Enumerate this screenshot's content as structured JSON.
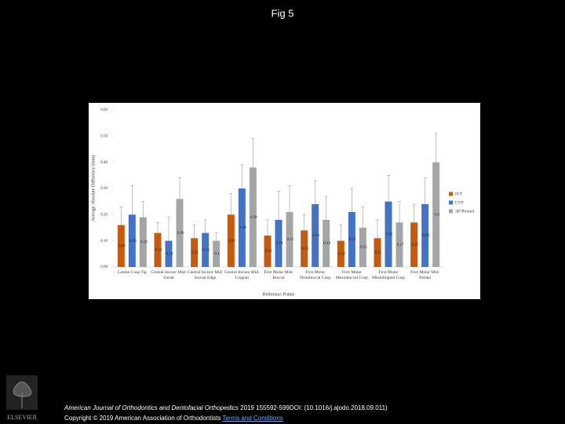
{
  "page": {
    "title": "Fig 5",
    "journal": "American Journal of Orthodontics and Dentofacial Orthopedics",
    "citation": "2019 155592-599DOI: (10.1016/j.ajodo.2018.09.011)",
    "copyright": "Copyright © 2019 American Association of Orthodontists",
    "link": "Terms and Conditions",
    "logo_text": "ELSEVIER"
  },
  "chart_data": {
    "type": "bar",
    "x_label": "Reference Points",
    "y_label": "Average Absolute Difference (mm)",
    "categories": [
      "Canine Cusp Tip",
      "Central Incisor Mid-Facial",
      "Central Incisor Mid-Incisal Edge",
      "Central Incisor Mid-Lingual",
      "First Molar Mid-Buccal",
      "First Molar Distobuccal Cusp",
      "First Molar Mesiobuccal Cusp",
      "First Molar Mesiolingual Cusp",
      "First Molar Mid-Palatal"
    ],
    "series": [
      {
        "name": "IVT",
        "color": "#c55a11",
        "values": [
          0.16,
          0.13,
          0.11,
          0.2,
          0.12,
          0.14,
          0.1,
          0.11,
          0.17
        ],
        "value_labels": [
          "0.16",
          "0.13",
          "0.11",
          "0.20",
          "0.12",
          "0.14",
          "0.10",
          "0.11",
          "0.17"
        ],
        "errors": [
          0.07,
          0.04,
          0.05,
          0.08,
          0.06,
          0.06,
          0.06,
          0.07,
          0.07
        ]
      },
      {
        "name": "CVP",
        "color": "#4472c4",
        "values": [
          0.2,
          0.1,
          0.13,
          0.3,
          0.18,
          0.24,
          0.21,
          0.25,
          0.24
        ],
        "value_labels": [
          "0.20",
          "0.10",
          "0.13",
          "0.30",
          "0.18",
          "0.24",
          "0.21",
          "0.25",
          "0.24"
        ],
        "errors": [
          0.11,
          0.09,
          0.05,
          0.09,
          0.11,
          0.09,
          0.09,
          0.1,
          0.1
        ]
      },
      {
        "name": "3D Printed",
        "color": "#a5a5a5",
        "values": [
          0.19,
          0.26,
          0.1,
          0.38,
          0.21,
          0.18,
          0.15,
          0.17,
          0.4
        ],
        "value_labels": [
          "0.19",
          "0.26",
          "0.1",
          "0.38",
          "0.21",
          "0.18",
          "0.15",
          "0.17",
          "0.4"
        ],
        "errors": [
          0.06,
          0.08,
          0.03,
          0.11,
          0.1,
          0.09,
          0.08,
          0.08,
          0.11
        ]
      }
    ],
    "ylim": [
      0,
      0.6
    ],
    "yticks": [
      {
        "value": 0,
        "label": "0.00"
      },
      {
        "value": 0.1,
        "label": "0.10"
      },
      {
        "value": 0.2,
        "label": "0.20"
      },
      {
        "value": 0.3,
        "label": "0.30"
      },
      {
        "value": 0.4,
        "label": "0.40"
      },
      {
        "value": 0.5,
        "label": "0.50"
      },
      {
        "value": 0.6,
        "label": "0.60"
      }
    ],
    "legend": "right",
    "grid": false
  }
}
